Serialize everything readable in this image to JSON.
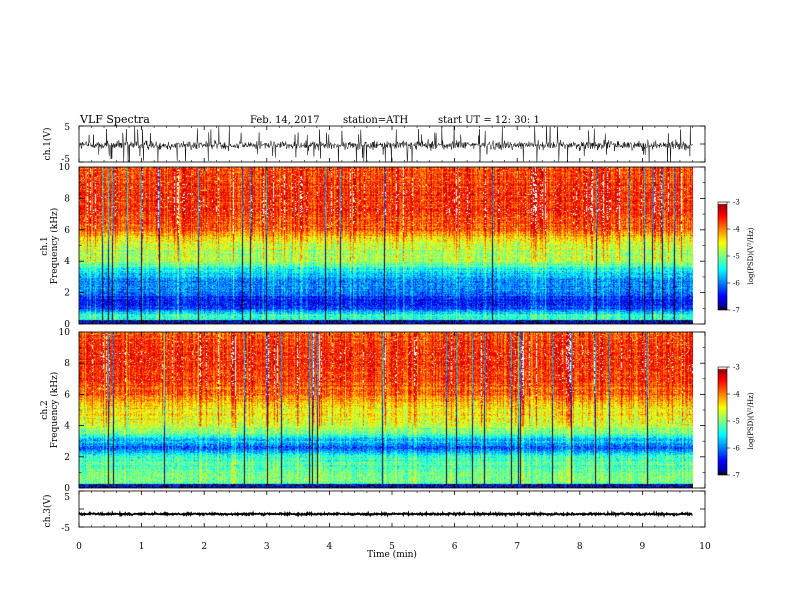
{
  "header": {
    "title": "VLF  Spectra",
    "date": "Feb. 14, 2017",
    "station": "station=ATH",
    "start": "start  UT  =    12: 30: 1"
  },
  "chart_data": {
    "type": "heatmap",
    "xlabel": "Time  (min)",
    "xlim": [
      0,
      10
    ],
    "xticks": [
      "0",
      "1",
      "2",
      "3",
      "4",
      "5",
      "6",
      "7",
      "8",
      "9",
      "10"
    ],
    "data_end_min": 9.8,
    "panels": [
      {
        "id": "ch1-waveform",
        "type": "line",
        "ylabel": "ch.1(V)",
        "ylim": [
          -5,
          5
        ],
        "yticks": [
          "5",
          "-5"
        ],
        "mean_level_v": -0.3,
        "noise_amplitude_v": 1.2
      },
      {
        "id": "ch1-spectrogram",
        "type": "heatmap",
        "ylabel": "ch.1\nFrequency  (kHz)",
        "ylim": [
          0,
          10
        ],
        "yticks": [
          "0",
          "2",
          "4",
          "6",
          "8",
          "10"
        ],
        "colorbar": {
          "label": "log(PSD)(V²/Hz)",
          "range": [
            -7,
            -3
          ],
          "ticks": [
            "-3",
            "-4",
            "-5",
            "-6",
            "-7"
          ]
        },
        "profile_khz": [
          [
            0,
            -5.6
          ],
          [
            0.5,
            -5.2
          ],
          [
            1.0,
            -6.3
          ],
          [
            1.5,
            -6.5
          ],
          [
            2.0,
            -6.0
          ],
          [
            2.8,
            -6.0
          ],
          [
            3.5,
            -5.4
          ],
          [
            4.0,
            -4.9
          ],
          [
            5.0,
            -4.7
          ],
          [
            5.5,
            -4.4
          ],
          [
            6.0,
            -3.9
          ],
          [
            7.0,
            -3.7
          ],
          [
            8.0,
            -3.6
          ],
          [
            9.0,
            -3.7
          ],
          [
            10.0,
            -3.8
          ]
        ]
      },
      {
        "id": "ch2-spectrogram",
        "type": "heatmap",
        "ylabel": "ch.2\nFrequency  (kHz)",
        "ylim": [
          0,
          10
        ],
        "yticks": [
          "0",
          "2",
          "4",
          "6",
          "8",
          "10"
        ],
        "colorbar": {
          "label": "log(PSD)(V²/Hz)",
          "range": [
            -7,
            -3
          ],
          "ticks": [
            "-3",
            "-4",
            "-5",
            "-6",
            "-7"
          ]
        },
        "profile_khz": [
          [
            0,
            -5.4
          ],
          [
            0.5,
            -5.0
          ],
          [
            1.0,
            -5.1
          ],
          [
            1.5,
            -5.2
          ],
          [
            2.0,
            -5.3
          ],
          [
            2.6,
            -6.2
          ],
          [
            3.2,
            -5.6
          ],
          [
            3.6,
            -5.0
          ],
          [
            4.5,
            -4.6
          ],
          [
            5.5,
            -4.3
          ],
          [
            6.0,
            -3.9
          ],
          [
            7.0,
            -3.8
          ],
          [
            8.0,
            -3.6
          ],
          [
            9.0,
            -3.7
          ],
          [
            10.0,
            -3.9
          ]
        ]
      },
      {
        "id": "ch3-waveform",
        "type": "line",
        "ylabel": "ch.3(V)",
        "ylim": [
          -5,
          5
        ],
        "yticks": [
          "5",
          "-5"
        ],
        "mean_level_v": -1.4,
        "noise_amplitude_v": 0.25
      }
    ]
  }
}
